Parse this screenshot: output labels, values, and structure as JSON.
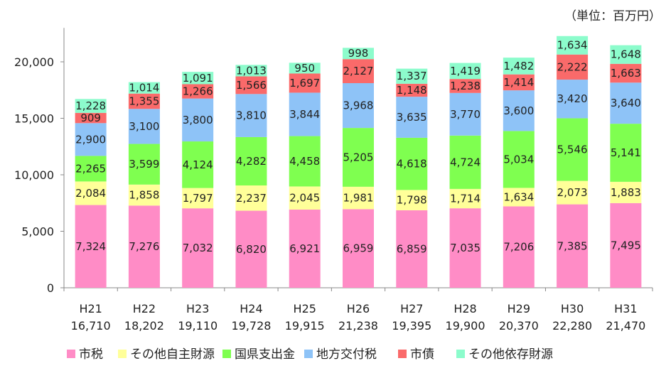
{
  "chart_data": {
    "type": "bar",
    "stacked": true,
    "unit_note": "（単位：百万円）",
    "categories": [
      "H21",
      "H22",
      "H23",
      "H24",
      "H25",
      "H26",
      "H27",
      "H28",
      "H29",
      "H30",
      "H31"
    ],
    "totals": [
      "16,710",
      "18,202",
      "19,110",
      "19,728",
      "19,915",
      "21,238",
      "19,395",
      "19,900",
      "20,370",
      "22,280",
      "21,470"
    ],
    "ylim": [
      0,
      23000
    ],
    "yticks": [
      0,
      5000,
      10000,
      15000,
      20000
    ],
    "ytick_labels": [
      "0",
      "5,000",
      "10,000",
      "15,000",
      "20,000"
    ],
    "grid": false,
    "legend_position": "bottom",
    "series": [
      {
        "name": "市税",
        "color": "#FF8CC6",
        "values": [
          7324,
          7276,
          7032,
          6820,
          6921,
          6959,
          6859,
          7035,
          7206,
          7385,
          7495
        ]
      },
      {
        "name": "その他自主財源",
        "color": "#FFFF99",
        "values": [
          2084,
          1858,
          1797,
          2237,
          2045,
          1981,
          1798,
          1714,
          1634,
          2073,
          1883
        ]
      },
      {
        "name": "国県支出金",
        "color": "#7FFF50",
        "values": [
          2265,
          3599,
          4124,
          4282,
          4458,
          5205,
          4618,
          4724,
          5034,
          5546,
          5141
        ]
      },
      {
        "name": "地方交付税",
        "color": "#8EC3F7",
        "values": [
          2900,
          3100,
          3800,
          3810,
          3844,
          3968,
          3635,
          3770,
          3600,
          3420,
          3640
        ]
      },
      {
        "name": "市債",
        "color": "#FA6A6A",
        "values": [
          909,
          1355,
          1266,
          1566,
          1697,
          2127,
          1148,
          1238,
          1414,
          2222,
          1663
        ]
      },
      {
        "name": "その他依存財源",
        "color": "#8CFCCC",
        "values": [
          1228,
          1014,
          1091,
          1013,
          950,
          998,
          1337,
          1419,
          1482,
          1634,
          1648
        ]
      }
    ]
  }
}
